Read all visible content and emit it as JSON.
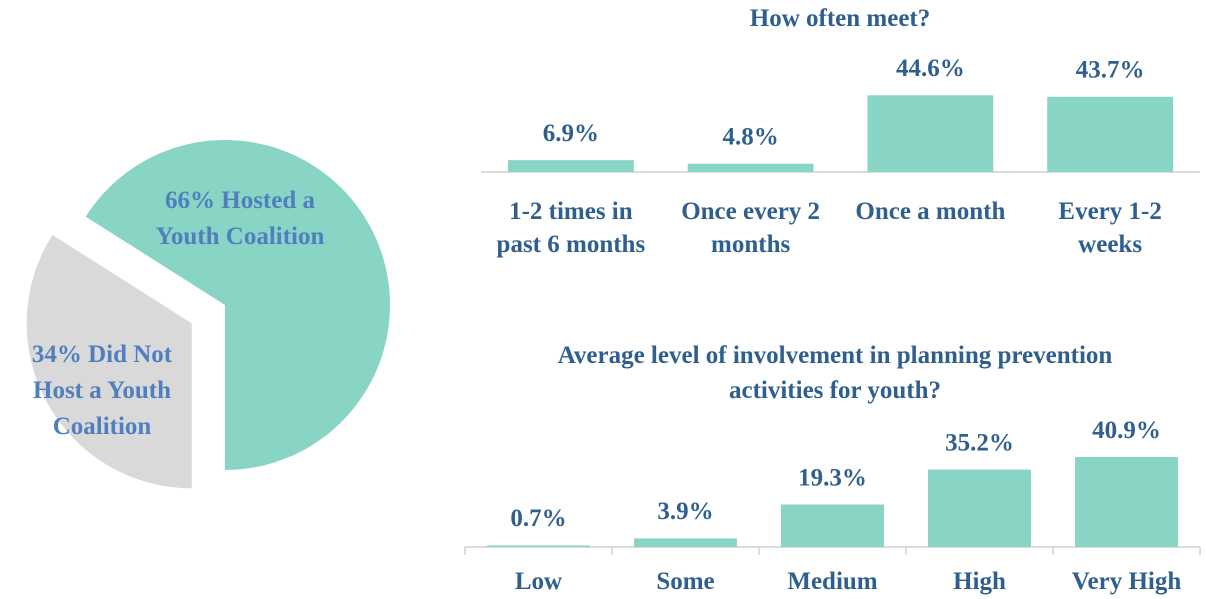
{
  "chart_data": [
    {
      "type": "pie",
      "labels": [
        "66% Hosted a Youth Coalition",
        "34% Did Not Host a Youth Coalition"
      ],
      "values": [
        66,
        34
      ],
      "colors": [
        "#88d5c5",
        "#d9d9d9"
      ]
    },
    {
      "type": "bar",
      "title": "How often meet?",
      "categories": [
        "1-2 times in past 6 months",
        "Once every 2 months",
        "Once a month",
        "Every 1-2 weeks"
      ],
      "values": [
        6.9,
        4.8,
        44.6,
        43.7
      ],
      "value_labels": [
        "6.9%",
        "4.8%",
        "44.6%",
        "43.7%"
      ],
      "color": "#88d5c5",
      "ylim": [
        0,
        50
      ]
    },
    {
      "type": "bar",
      "title": "Average level of involvement in planning prevention activities for youth?",
      "categories": [
        "Low",
        "Some",
        "Medium",
        "High",
        "Very High"
      ],
      "values": [
        0.7,
        3.9,
        19.3,
        35.2,
        40.9
      ],
      "value_labels": [
        "0.7%",
        "3.9%",
        "19.3%",
        "35.2%",
        "40.9%"
      ],
      "color": "#88d5c5",
      "ylim": [
        0,
        50
      ]
    }
  ]
}
